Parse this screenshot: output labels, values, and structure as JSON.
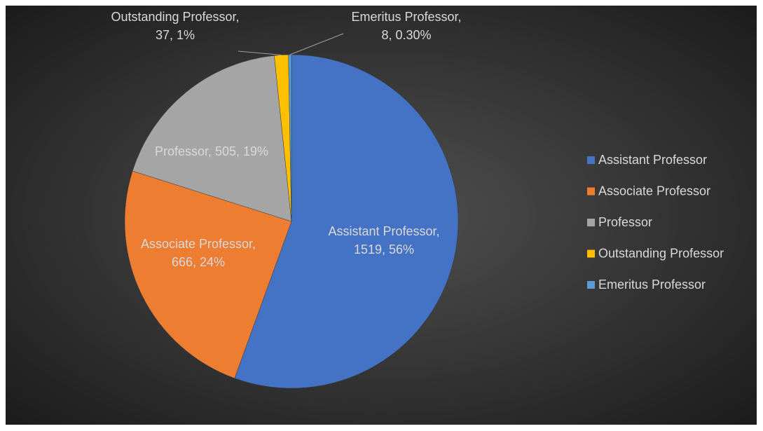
{
  "chart_data": {
    "type": "pie",
    "categories": [
      "Assistant Professor",
      "Associate Professor",
      "Professor",
      "Outstanding Professor",
      "Emeritus Professor"
    ],
    "values": [
      1519,
      666,
      505,
      37,
      8
    ],
    "value_labels": [
      "Assistant Professor, 1519, 56%",
      "Associate Professor, 666, 24%",
      "Professor, 505, 19%",
      "Outstanding Professor, 37, 1%",
      "Emeritus Professor, 8, 0.30%"
    ],
    "colors": [
      "#4472c4",
      "#ed7d31",
      "#a5a5a5",
      "#ffc000",
      "#5b9bd5"
    ],
    "legend": "right"
  }
}
